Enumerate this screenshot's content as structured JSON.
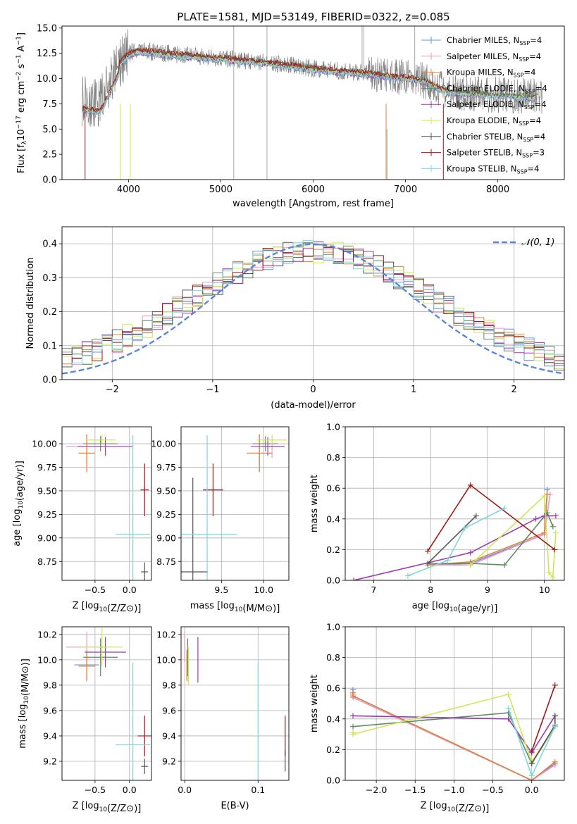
{
  "figure": {
    "title": "PLATE=1581, MJD=53149, FIBERID=0322, z=0.085"
  },
  "colors": {
    "Chabrier MILES": "#6a8fd8",
    "Salpeter MILES": "#e29ac8",
    "Kroupa MILES": "#e0843a",
    "Chabrier ELODIE": "#5f8c62",
    "Salpeter ELODIE": "#9a3bb0",
    "Kroupa ELODIE": "#cfe655",
    "Chabrier STELIB": "#555555",
    "Salpeter STELIB": "#a01919",
    "Kroupa STELIB": "#7fd7dd",
    "data": "#808080",
    "normal": "#5b86d6",
    "grid": "#b0b0b0"
  },
  "chart_data": [
    {
      "id": "spectrum",
      "type": "line",
      "title": "PLATE=1581, MJD=53149, FIBERID=0322, z=0.085",
      "xlabel": "wavelength [Angstrom, rest frame]",
      "ylabel": "Flux [f_λ 10^-17 erg cm^-2 s^-1 A^-1]",
      "xlim": [
        3280,
        8720
      ],
      "ylim": [
        0,
        15.2
      ],
      "xticks": [
        4000,
        5000,
        6000,
        7000,
        8000
      ],
      "yticks": [
        0.0,
        2.5,
        5.0,
        7.5,
        10.0,
        12.5,
        15.0
      ],
      "legend_position": "upper right",
      "legend": [
        {
          "name": "Chabrier MILES",
          "nssp": "4"
        },
        {
          "name": "Salpeter MILES",
          "nssp": "4"
        },
        {
          "name": "Kroupa MILES",
          "nssp": "4"
        },
        {
          "name": "Chabrier ELODIE",
          "nssp": "4"
        },
        {
          "name": "Salpeter ELODIE",
          "nssp": "4"
        },
        {
          "name": "Kroupa ELODIE",
          "nssp": "4"
        },
        {
          "name": "Chabrier STELIB",
          "nssp": "4"
        },
        {
          "name": "Salpeter STELIB",
          "nssp": "3"
        },
        {
          "name": "Kroupa STELIB",
          "nssp": "4"
        }
      ],
      "continuum": {
        "x": [
          3500,
          3700,
          3900,
          4000,
          4100,
          4300,
          4500,
          5000,
          5500,
          6000,
          6500,
          7000,
          7200,
          7400,
          7600,
          8000,
          8400
        ],
        "y": [
          7.8,
          7.6,
          11.5,
          12.4,
          12.8,
          12.6,
          12.4,
          12.0,
          11.6,
          11.0,
          10.6,
          10.1,
          9.8,
          8.9,
          8.6,
          8.4,
          8.2
        ]
      }
    },
    {
      "id": "residuals",
      "type": "line",
      "xlabel": "(data-model)/error",
      "ylabel": "Normed distribution",
      "xlim": [
        -2.5,
        2.5
      ],
      "ylim": [
        0,
        0.45
      ],
      "xticks": [
        -2,
        -1,
        0,
        1,
        2
      ],
      "yticks": [
        0.0,
        0.1,
        0.2,
        0.3,
        0.4
      ],
      "legend": [
        "𝒩(0, 1)"
      ],
      "legend_position": "upper right",
      "histogram_bins": 50
    },
    {
      "id": "age_vs_Z",
      "type": "scatter",
      "xlabel": "Z [log10(Z/Z⊙)]",
      "ylabel": "age  [log10(age/yr)]",
      "xlim": [
        -0.98,
        0.32
      ],
      "ylim": [
        8.55,
        10.18
      ],
      "xticks": [
        -0.5,
        0.0
      ],
      "yticks": [
        8.75,
        9.0,
        9.25,
        9.5,
        9.75,
        10.0
      ],
      "points": [
        {
          "model": "Chabrier MILES",
          "x": -0.62,
          "y": 9.9,
          "xerr": 0.12,
          "yerr": 0.2
        },
        {
          "model": "Salpeter MILES",
          "x": -0.62,
          "y": 9.97,
          "xerr": 0.3,
          "yerr": 0.12
        },
        {
          "model": "Kroupa MILES",
          "x": -0.62,
          "y": 9.9,
          "xerr": 0.12,
          "yerr": 0.2
        },
        {
          "model": "Chabrier ELODIE",
          "x": -0.42,
          "y": 10.0,
          "xerr": 0.25,
          "yerr": 0.08
        },
        {
          "model": "Salpeter ELODIE",
          "x": -0.35,
          "y": 9.97,
          "xerr": 0.4,
          "yerr": 0.1
        },
        {
          "model": "Kroupa ELODIE",
          "x": -0.4,
          "y": 10.04,
          "xerr": 0.2,
          "yerr": 0.05
        },
        {
          "model": "Chabrier STELIB",
          "x": 0.22,
          "y": 8.64,
          "xerr": 0.05,
          "yerr": 0.1
        },
        {
          "model": "Salpeter STELIB",
          "x": 0.22,
          "y": 9.51,
          "xerr": 0.06,
          "yerr": 0.28
        },
        {
          "model": "Kroupa STELIB",
          "x": 0.05,
          "y": 9.04,
          "xerr": 0.25,
          "yerr": 1.05
        }
      ]
    },
    {
      "id": "age_vs_mass",
      "type": "scatter",
      "xlabel": "mass [log10(M/M⊙)]",
      "ylabel": "",
      "xlim": [
        9.02,
        10.3
      ],
      "ylim": [
        8.55,
        10.18
      ],
      "xticks": [
        9.5,
        10.0
      ],
      "yticks": [
        8.75,
        9.0,
        9.25,
        9.5,
        9.75,
        10.0
      ],
      "points": [
        {
          "model": "Chabrier MILES",
          "x": 9.95,
          "y": 9.9,
          "xerr": 0.15,
          "yerr": 0.2
        },
        {
          "model": "Salpeter MILES",
          "x": 10.1,
          "y": 9.97,
          "xerr": 0.15,
          "yerr": 0.12
        },
        {
          "model": "Kroupa MILES",
          "x": 9.95,
          "y": 9.9,
          "xerr": 0.15,
          "yerr": 0.2
        },
        {
          "model": "Chabrier ELODIE",
          "x": 10.02,
          "y": 10.0,
          "xerr": 0.15,
          "yerr": 0.08
        },
        {
          "model": "Salpeter ELODIE",
          "x": 10.05,
          "y": 9.97,
          "xerr": 0.2,
          "yerr": 0.1
        },
        {
          "model": "Kroupa ELODIE",
          "x": 10.1,
          "y": 10.04,
          "xerr": 0.18,
          "yerr": 0.05
        },
        {
          "model": "Chabrier STELIB",
          "x": 9.16,
          "y": 8.64,
          "xerr": 0.18,
          "yerr": 1.0
        },
        {
          "model": "Salpeter STELIB",
          "x": 9.4,
          "y": 9.51,
          "xerr": 0.12,
          "yerr": 0.28
        },
        {
          "model": "Kroupa STELIB",
          "x": 9.33,
          "y": 9.04,
          "xerr": 0.35,
          "yerr": 1.05
        }
      ]
    },
    {
      "id": "weight_vs_age",
      "type": "line",
      "xlabel": "age  [log10(age/yr)]",
      "ylabel": "mass weight",
      "xlim": [
        6.5,
        10.35
      ],
      "ylim": [
        0.0,
        1.0
      ],
      "xticks": [
        7,
        8,
        9,
        10
      ],
      "yticks": [
        0.0,
        0.2,
        0.4,
        0.6,
        0.8,
        1.0
      ],
      "series": [
        {
          "model": "Chabrier MILES",
          "x": [
            7.95,
            8.7,
            10.0,
            10.05
          ],
          "y": [
            0.1,
            0.11,
            0.3,
            0.59
          ]
        },
        {
          "model": "Salpeter MILES",
          "x": [
            7.95,
            8.7,
            10.0,
            10.1
          ],
          "y": [
            0.1,
            0.1,
            0.3,
            0.56
          ]
        },
        {
          "model": "Kroupa MILES",
          "x": [
            7.95,
            8.7,
            10.0,
            10.05
          ],
          "y": [
            0.1,
            0.12,
            0.31,
            0.56
          ]
        },
        {
          "model": "Chabrier ELODIE",
          "x": [
            7.95,
            8.7,
            9.3,
            10.05,
            10.15
          ],
          "y": [
            0.11,
            0.11,
            0.1,
            0.44,
            0.35
          ]
        },
        {
          "model": "Salpeter ELODIE",
          "x": [
            6.65,
            8.7,
            9.85,
            10.0,
            10.2
          ],
          "y": [
            0.0,
            0.18,
            0.4,
            0.42,
            0.42
          ]
        },
        {
          "model": "Kroupa ELODIE",
          "x": [
            8.7,
            10.0,
            10.08,
            10.15,
            10.2
          ],
          "y": [
            0.1,
            0.55,
            0.05,
            0.02,
            0.31
          ]
        },
        {
          "model": "Chabrier STELIB",
          "x": [
            7.95,
            8.8
          ],
          "y": [
            0.11,
            0.42
          ]
        },
        {
          "model": "Salpeter STELIB",
          "x": [
            7.95,
            8.7,
            10.18
          ],
          "y": [
            0.19,
            0.62,
            0.2
          ]
        },
        {
          "model": "Kroupa STELIB",
          "x": [
            7.6,
            8.3,
            8.6,
            9.3
          ],
          "y": [
            0.03,
            0.13,
            0.34,
            0.47
          ]
        }
      ]
    },
    {
      "id": "mass_vs_Z",
      "type": "scatter",
      "xlabel": "Z [log10(Z/Z⊙)]",
      "ylabel": "mass [log10(M/M⊙)]",
      "xlim": [
        -0.98,
        0.32
      ],
      "ylim": [
        9.05,
        10.26
      ],
      "xticks": [
        -0.5,
        0.0
      ],
      "yticks": [
        9.2,
        9.4,
        9.6,
        9.8,
        10.0,
        10.2
      ],
      "points": [
        {
          "model": "Chabrier MILES",
          "x": -0.62,
          "y": 9.96,
          "xerr": 0.18,
          "yerr": 0.12
        },
        {
          "model": "Salpeter MILES",
          "x": -0.62,
          "y": 10.1,
          "xerr": 0.3,
          "yerr": 0.12
        },
        {
          "model": "Kroupa MILES",
          "x": -0.62,
          "y": 9.95,
          "xerr": 0.12,
          "yerr": 0.12
        },
        {
          "model": "Chabrier ELODIE",
          "x": -0.42,
          "y": 10.02,
          "xerr": 0.25,
          "yerr": 0.15
        },
        {
          "model": "Salpeter ELODIE",
          "x": -0.35,
          "y": 10.06,
          "xerr": 0.3,
          "yerr": 0.12
        },
        {
          "model": "Kroupa ELODIE",
          "x": -0.4,
          "y": 10.1,
          "xerr": 0.3,
          "yerr": 0.15
        },
        {
          "model": "Chabrier STELIB",
          "x": 0.22,
          "y": 9.16,
          "xerr": 0.05,
          "yerr": 0.06
        },
        {
          "model": "Salpeter STELIB",
          "x": 0.22,
          "y": 9.4,
          "xerr": 0.1,
          "yerr": 0.16
        },
        {
          "model": "Kroupa STELIB",
          "x": 0.05,
          "y": 9.33,
          "xerr": 0.25,
          "yerr": 0.65
        }
      ]
    },
    {
      "id": "mass_vs_ebv",
      "type": "scatter",
      "xlabel": "E(B-V)",
      "ylabel": "",
      "xlim": [
        -0.005,
        0.142
      ],
      "ylim": [
        9.05,
        10.26
      ],
      "xticks": [
        0.0,
        0.1
      ],
      "yticks": [
        9.2,
        9.4,
        9.6,
        9.8,
        10.0,
        10.2
      ],
      "points": [
        {
          "model": "Chabrier MILES",
          "x": 0.003,
          "y": 9.96,
          "yerr": 0.12
        },
        {
          "model": "Salpeter MILES",
          "x": 0.0,
          "y": 10.1,
          "yerr": 0.12
        },
        {
          "model": "Kroupa MILES",
          "x": 0.003,
          "y": 9.95,
          "yerr": 0.12
        },
        {
          "model": "Chabrier ELODIE",
          "x": 0.004,
          "y": 10.02,
          "yerr": 0.15
        },
        {
          "model": "Salpeter ELODIE",
          "x": 0.018,
          "y": 10.0,
          "yerr": 0.18
        },
        {
          "model": "Kroupa ELODIE",
          "x": 0.005,
          "y": 9.95,
          "yerr": 0.15
        },
        {
          "model": "Chabrier STELIB",
          "x": 0.137,
          "y": 9.2,
          "yerr": 0.08
        },
        {
          "model": "Salpeter STELIB",
          "x": 0.137,
          "y": 9.4,
          "yerr": 0.16
        },
        {
          "model": "Kroupa STELIB",
          "x": 0.1,
          "y": 9.33,
          "yerr": 0.65
        }
      ]
    },
    {
      "id": "weight_vs_Z",
      "type": "line",
      "xlabel": "Z [log10(Z/Z⊙)]",
      "ylabel": "mass weight",
      "xlim": [
        -2.4,
        0.42
      ],
      "ylim": [
        0.0,
        1.0
      ],
      "xticks": [
        -2.0,
        -1.5,
        -1.0,
        -0.5,
        0.0
      ],
      "yticks": [
        0.0,
        0.2,
        0.4,
        0.6,
        0.8,
        1.0
      ],
      "series": [
        {
          "model": "Chabrier MILES",
          "x": [
            -2.3,
            -2.3,
            0.0,
            0.3
          ],
          "y": [
            0.59,
            0.55,
            0.0,
            0.11
          ]
        },
        {
          "model": "Salpeter MILES",
          "x": [
            -2.3,
            -2.3,
            0.0,
            0.3
          ],
          "y": [
            0.56,
            0.54,
            0.0,
            0.1
          ]
        },
        {
          "model": "Kroupa MILES",
          "x": [
            -2.3,
            -2.3,
            0.0,
            0.3
          ],
          "y": [
            0.57,
            0.55,
            0.0,
            0.12
          ]
        },
        {
          "model": "Chabrier ELODIE",
          "x": [
            -2.3,
            -0.3,
            0.0,
            0.3
          ],
          "y": [
            0.35,
            0.44,
            0.11,
            0.35
          ]
        },
        {
          "model": "Salpeter ELODIE",
          "x": [
            -2.3,
            -0.3,
            0.0,
            0.3
          ],
          "y": [
            0.42,
            0.4,
            0.18,
            0.42
          ]
        },
        {
          "model": "Kroupa ELODIE",
          "x": [
            -2.3,
            -2.3,
            -0.3,
            0.0,
            0.3
          ],
          "y": [
            0.31,
            0.3,
            0.56,
            0.12,
            0.35
          ]
        },
        {
          "model": "Chabrier STELIB",
          "x": [
            0.0,
            0.3,
            0.3
          ],
          "y": [
            0.11,
            0.36,
            0.42
          ]
        },
        {
          "model": "Salpeter STELIB",
          "x": [
            0.0,
            0.3
          ],
          "y": [
            0.19,
            0.62
          ]
        },
        {
          "model": "Kroupa STELIB",
          "x": [
            -0.3,
            0.0,
            0.3
          ],
          "y": [
            0.47,
            0.03,
            0.35
          ]
        }
      ]
    }
  ]
}
